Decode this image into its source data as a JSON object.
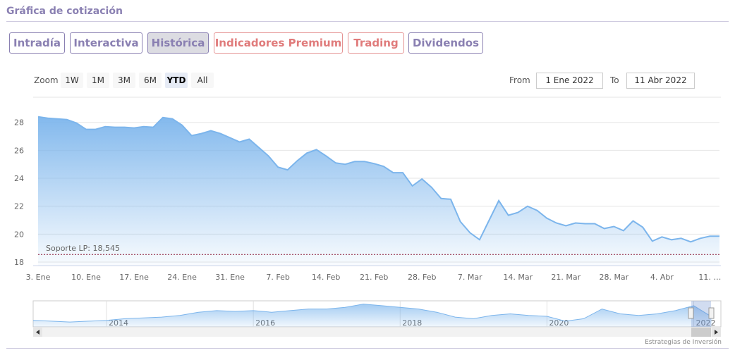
{
  "header": {
    "title": "Gráfica de cotización"
  },
  "tabs": [
    "Intradía",
    "Interactiva",
    "Histórica",
    "Indicadores Premium",
    "Trading",
    "Dividendos"
  ],
  "zoom": {
    "label": "Zoom",
    "buttons": [
      "1W",
      "1M",
      "3M",
      "6M",
      "YTD",
      "All"
    ],
    "active": "YTD"
  },
  "range": {
    "from_label": "From",
    "from": "1 Ene 2022",
    "to_label": "To",
    "to": "11 Abr 2022"
  },
  "credit": "Estrategias de Inversión",
  "chart_data": [
    {
      "type": "area",
      "color": "#7cb5ec",
      "categories": [
        "3. Ene",
        null,
        null,
        null,
        null,
        "10. Ene",
        null,
        null,
        null,
        null,
        "17. Ene",
        null,
        null,
        null,
        null,
        "24. Ene",
        null,
        null,
        null,
        null,
        "31. Ene",
        null,
        null,
        null,
        null,
        "7. Feb",
        null,
        null,
        null,
        null,
        "14. Feb",
        null,
        null,
        null,
        null,
        "21. Feb",
        null,
        null,
        null,
        null,
        "28. Feb",
        null,
        null,
        null,
        null,
        "7. Mar",
        null,
        null,
        null,
        null,
        "14. Mar",
        null,
        null,
        null,
        null,
        "21. Mar",
        null,
        null,
        null,
        null,
        "28. Mar",
        null,
        null,
        null,
        null,
        "4. Abr",
        null,
        null,
        null,
        null,
        "11. …",
        null
      ],
      "values": [
        28.4,
        28.3,
        28.25,
        28.2,
        27.95,
        27.5,
        27.5,
        27.7,
        27.65,
        27.65,
        27.6,
        27.7,
        27.65,
        28.35,
        28.25,
        27.8,
        27.05,
        27.2,
        27.4,
        27.2,
        26.9,
        26.6,
        26.8,
        26.2,
        25.6,
        24.8,
        24.6,
        25.25,
        25.8,
        26.05,
        25.6,
        25.1,
        25.0,
        25.2,
        25.2,
        25.05,
        24.85,
        24.4,
        24.4,
        23.45,
        23.95,
        23.35,
        22.55,
        22.5,
        20.9,
        20.1,
        19.6,
        21.0,
        22.4,
        21.35,
        21.55,
        22.0,
        21.7,
        21.15,
        20.8,
        20.6,
        20.8,
        20.75,
        20.75,
        20.4,
        20.55,
        20.25,
        20.95,
        20.5,
        19.5,
        19.8,
        19.6,
        19.7,
        19.45,
        19.7,
        19.85,
        19.85
      ],
      "ylim": [
        17.75,
        29.8
      ],
      "yticks": [
        18,
        20,
        22,
        24,
        26,
        28
      ],
      "grid": true,
      "support": {
        "value": 18.545,
        "label": "Soporte LP: 18,545",
        "color": "#8b1a3a"
      }
    },
    {
      "type": "area",
      "color": "#7cb5ec",
      "x": [
        2013,
        2013.25,
        2013.5,
        2013.75,
        2014,
        2014.25,
        2014.5,
        2014.75,
        2015,
        2015.25,
        2015.5,
        2015.75,
        2016,
        2016.25,
        2016.5,
        2016.75,
        2017,
        2017.25,
        2017.5,
        2017.75,
        2018,
        2018.25,
        2018.5,
        2018.75,
        2019,
        2019.25,
        2019.5,
        2019.75,
        2020,
        2020.25,
        2020.5,
        2020.75,
        2021,
        2021.25,
        2021.5,
        2021.75,
        2022,
        2022.25
      ],
      "values": [
        18,
        17.5,
        17,
        17.5,
        18,
        19,
        19.5,
        20,
        21,
        23,
        24,
        23.5,
        24,
        23,
        24,
        25,
        25,
        26,
        28,
        27,
        26,
        25,
        23,
        20,
        19,
        21,
        22,
        21,
        20.5,
        17.5,
        19,
        25,
        22,
        21,
        22,
        24,
        27,
        20
      ],
      "xlim": [
        2013,
        2022.37
      ],
      "ylim": [
        14,
        30
      ],
      "xticks": [
        2014,
        2016,
        2018,
        2020,
        2022
      ],
      "grid": true
    }
  ]
}
